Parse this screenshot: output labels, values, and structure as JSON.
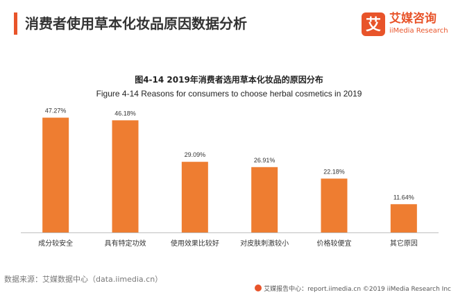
{
  "page": {
    "title": "消费者使用草本化妆品原因数据分析",
    "accent_color": "#e8542a"
  },
  "brand": {
    "name": "艾媒咨询",
    "sub": "iiMedia Research",
    "logo_char": "艾",
    "color": "#e8542a"
  },
  "chart_data": {
    "type": "bar",
    "title": "图4-14 2019年消费者选用草本化妆品的原因分布",
    "subtitle": "Figure 4-14 Reasons for consumers to choose herbal cosmetics in 2019",
    "categories": [
      "成分较安全",
      "具有特定功效",
      "使用效果比较好",
      "对皮肤刺激较小",
      "价格较便宜",
      "其它原因"
    ],
    "values": [
      47.27,
      46.18,
      29.09,
      26.91,
      22.18,
      11.64
    ],
    "value_labels": [
      "47.27%",
      "46.18%",
      "29.09%",
      "26.91%",
      "22.18%",
      "11.64%"
    ],
    "ylim": [
      0,
      50
    ],
    "bar_color": "#ee7d31",
    "grid": false,
    "xlabel": "",
    "ylabel": ""
  },
  "footer": {
    "source": "数据来源：艾媒数据中心（data.iimedia.cn）",
    "copyright": "艾媒报告中心：report.iimedia.cn  ©2019  iiMedia Research  Inc"
  }
}
